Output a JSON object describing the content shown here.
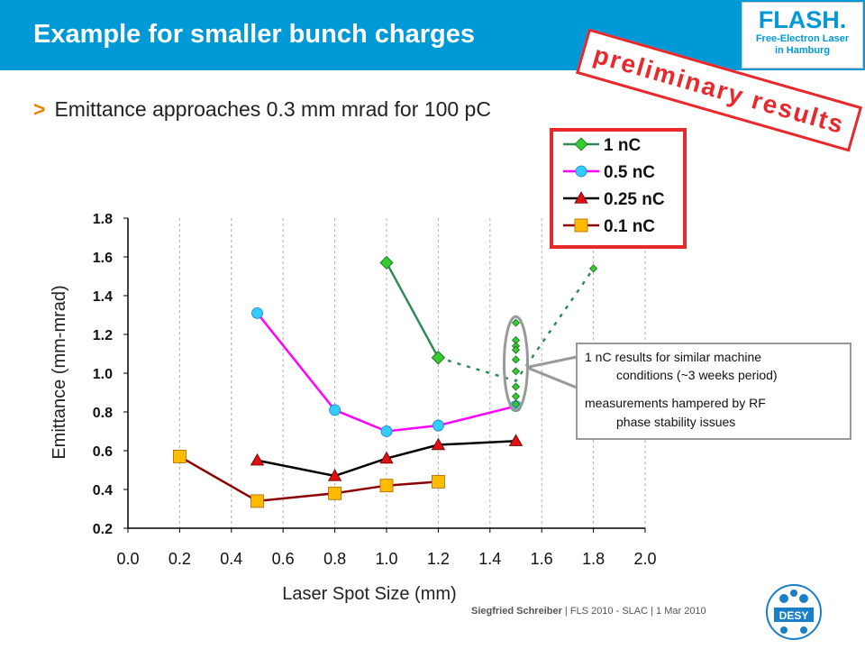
{
  "slide": {
    "title": "Example for smaller bunch charges",
    "bullet": "Emittance approaches 0.3 mm mrad for 100 pC",
    "stamp": "preliminary results",
    "footer_author": "Siegfried Schreiber",
    "footer_rest": " | FLS 2010 - SLAC | 1 Mar 2010",
    "flash_logo": {
      "name": "FLASH.",
      "line1": "Free-Electron Laser",
      "line2": "in Hamburg"
    },
    "desy_logo": "DESY"
  },
  "annotations": {
    "line1": "1 nC results for similar machine",
    "line2": "conditions (~3 weeks period)",
    "line3": "measurements hampered by RF",
    "line4": "phase stability issues"
  },
  "chart_data": {
    "type": "line",
    "xlabel": "Laser Spot Size (mm)",
    "ylabel": "Emittance (mm-mrad)",
    "xlim": [
      0.0,
      2.0
    ],
    "ylim": [
      0.2,
      1.8
    ],
    "xticks": [
      "0.0",
      "0.2",
      "0.4",
      "0.6",
      "0.8",
      "1.0",
      "1.2",
      "1.4",
      "1.6",
      "1.8",
      "2.0"
    ],
    "yticks": [
      "0.2",
      "0.4",
      "0.6",
      "0.8",
      "1.0",
      "1.2",
      "1.4",
      "1.6",
      "1.8"
    ],
    "grid": "vertical dashed",
    "legend_position": "top-right",
    "series": [
      {
        "name": "1 nC",
        "color": "#2e8b57",
        "marker": "diamond",
        "marker_color": "#33cc33",
        "x": [
          1.0,
          1.2
        ],
        "y": [
          1.57,
          1.08
        ]
      },
      {
        "name": "0.5 nC",
        "color": "#ff00ff",
        "marker": "circle",
        "marker_color": "#33ccff",
        "x": [
          0.5,
          0.8,
          1.0,
          1.2,
          1.5
        ],
        "y": [
          1.31,
          0.81,
          0.7,
          0.73,
          0.83
        ]
      },
      {
        "name": "0.25 nC",
        "color": "#000000",
        "marker": "triangle",
        "marker_color": "#dd1111",
        "x": [
          0.5,
          0.8,
          1.0,
          1.2,
          1.5
        ],
        "y": [
          0.55,
          0.47,
          0.56,
          0.63,
          0.65
        ]
      },
      {
        "name": "0.1 nC",
        "color": "#8b0000",
        "marker": "square",
        "marker_color": "#ffbb00",
        "x": [
          0.2,
          0.5,
          0.8,
          1.0,
          1.2
        ],
        "y": [
          0.57,
          0.34,
          0.38,
          0.42,
          0.44
        ]
      }
    ],
    "extra_1nC_points": {
      "x": [
        1.2,
        1.5,
        1.5,
        1.5,
        1.5,
        1.5,
        1.5,
        1.5,
        1.5,
        1.5,
        1.8
      ],
      "y": [
        1.08,
        1.26,
        1.17,
        1.14,
        1.12,
        1.07,
        1.01,
        0.93,
        0.88,
        0.84,
        1.54
      ],
      "dashed_path_x": [
        1.2,
        1.5,
        1.8
      ],
      "dashed_path_y": [
        1.08,
        0.96,
        1.54
      ]
    }
  }
}
